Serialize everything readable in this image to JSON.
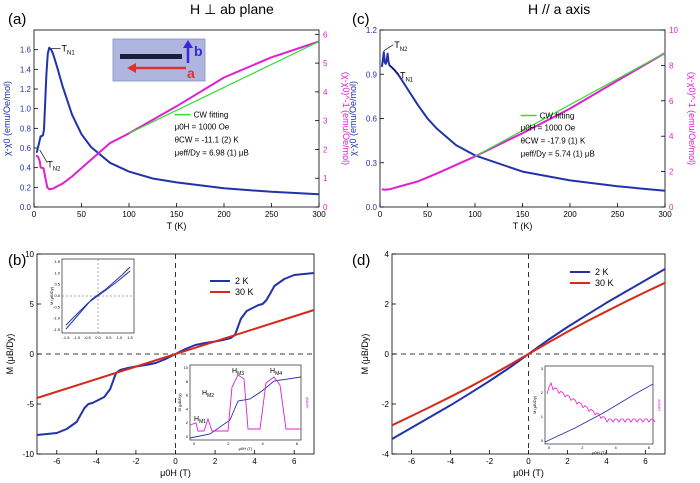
{
  "colors": {
    "blue": "#2233aa",
    "red": "#d42a1a",
    "magenta": "#e020d0",
    "green": "#33dd33",
    "arrow_blue": "#3a28d8",
    "arrow_red": "#e0302a"
  },
  "panels": {
    "a": {
      "label": "(a)",
      "title": "H ⊥ ab plane"
    },
    "b": {
      "label": "(b)"
    },
    "c": {
      "label": "(c)",
      "title": "H // a axis"
    },
    "d": {
      "label": "(d)"
    }
  },
  "crystal_photo": {
    "label_a": "a",
    "label_b": "b"
  },
  "chart_data": [
    {
      "id": "a",
      "type": "line",
      "xlabel": "T (K)",
      "ylabel": "χ-χ0 (emu/Oe/mol)",
      "y2label": "(χ-χ0)^-1 (emu/Oe/mol)",
      "xlim": [
        0,
        300
      ],
      "ylim": [
        0,
        1.8
      ],
      "y2lim": [
        0,
        6.15
      ],
      "xticks": [
        0,
        50,
        100,
        150,
        200,
        250,
        300
      ],
      "yticks": [
        0.0,
        0.2,
        0.4,
        0.6,
        0.8,
        1.0,
        1.2,
        1.4,
        1.6
      ],
      "y2ticks": [
        0,
        1,
        2,
        3,
        4,
        5,
        6
      ],
      "ytick_labels": [
        "0.0",
        "0.2",
        "0.4",
        "0.6",
        "0.8",
        "1.0",
        "1.2",
        "1.4",
        "1.6"
      ],
      "y2tick_labels": [
        "0",
        "1",
        "2",
        "3",
        "4",
        "5",
        "6"
      ],
      "series": [
        {
          "name": "χ-χ0",
          "color_key": "blue",
          "axis": "left",
          "x": [
            2,
            3,
            5,
            6.5,
            7,
            8,
            9.5,
            10.5,
            11.5,
            13,
            14.5,
            16,
            18,
            20,
            25,
            30,
            40,
            50,
            60,
            80,
            100,
            125,
            150,
            200,
            250,
            300
          ],
          "y": [
            0.56,
            0.56,
            0.64,
            0.7,
            0.72,
            0.72,
            0.73,
            0.79,
            1.0,
            1.35,
            1.56,
            1.62,
            1.6,
            1.56,
            1.4,
            1.23,
            0.94,
            0.74,
            0.61,
            0.45,
            0.36,
            0.29,
            0.25,
            0.19,
            0.155,
            0.13
          ]
        },
        {
          "name": "(χ-χ0)^-1",
          "color_key": "magenta",
          "axis": "right",
          "x": [
            2,
            4,
            6,
            7,
            8,
            10,
            12,
            14,
            16,
            20,
            25,
            30,
            40,
            50,
            60,
            80,
            100,
            150,
            200,
            250,
            300
          ],
          "y": [
            1.78,
            1.76,
            1.6,
            1.38,
            1.36,
            1.35,
            1.0,
            0.68,
            0.62,
            0.64,
            0.73,
            0.81,
            1.06,
            1.35,
            1.64,
            2.22,
            2.56,
            3.5,
            4.5,
            5.2,
            5.75
          ]
        },
        {
          "name": "CW fitting",
          "color_key": "green",
          "axis": "right",
          "x": [
            100,
            300
          ],
          "y": [
            2.56,
            5.75
          ]
        }
      ],
      "annotations": {
        "tn1": "T",
        "tn1_sub": "N1",
        "tn2": "T",
        "tn2_sub": "N2",
        "legend_cw": "CW fitting",
        "field": "μ0H = 1000 Oe",
        "theta": "θCW = -11.1 (2) K",
        "mu": "μeff/Dy = 6.98 (1) μB"
      }
    },
    {
      "id": "c",
      "type": "line",
      "xlabel": "T (K)",
      "ylabel": "χ-χ0 (emu/Oe/mol)",
      "y2label": "(χ-χ0)^-1 (emu/Oe/mol)",
      "xlim": [
        0,
        300
      ],
      "ylim": [
        0,
        1.2
      ],
      "y2lim": [
        0,
        10
      ],
      "xticks": [
        0,
        50,
        100,
        150,
        200,
        250,
        300
      ],
      "yticks": [
        0.0,
        0.3,
        0.6,
        0.9,
        1.2
      ],
      "y2ticks": [
        0,
        2,
        4,
        6,
        8,
        10
      ],
      "ytick_labels": [
        "0.0",
        "0.3",
        "0.6",
        "0.9",
        "1.2"
      ],
      "y2tick_labels": [
        "0",
        "2",
        "4",
        "6",
        "8",
        "10"
      ],
      "series": [
        {
          "name": "χ-χ0",
          "color_key": "blue",
          "axis": "left",
          "x": [
            2,
            3,
            4,
            5,
            6,
            7,
            8,
            9,
            10,
            12,
            15,
            20,
            30,
            40,
            50,
            60,
            80,
            100,
            150,
            200,
            250,
            300
          ],
          "y": [
            0.95,
            1.0,
            1.05,
            0.98,
            0.97,
            0.99,
            1.04,
            0.98,
            0.96,
            0.95,
            0.93,
            0.89,
            0.79,
            0.69,
            0.6,
            0.53,
            0.42,
            0.35,
            0.24,
            0.18,
            0.14,
            0.11
          ]
        },
        {
          "name": "(χ-χ0)^-1",
          "color_key": "magenta",
          "axis": "right",
          "x": [
            2,
            5,
            10,
            15,
            20,
            30,
            40,
            50,
            60,
            80,
            100,
            150,
            200,
            250,
            300
          ],
          "y": [
            1.0,
            0.98,
            1.0,
            1.08,
            1.15,
            1.3,
            1.45,
            1.67,
            1.9,
            2.38,
            2.86,
            4.17,
            5.56,
            7.14,
            8.7
          ]
        },
        {
          "name": "CW fitting",
          "color_key": "green",
          "axis": "right",
          "x": [
            100,
            300
          ],
          "y": [
            2.86,
            8.7
          ]
        }
      ],
      "annotations": {
        "tn2": "T",
        "tn2_sub": "N2",
        "tn1": "T",
        "tn1_sub": "N1",
        "legend_cw": "CW fitting",
        "field": "μ0H = 1000 Oe",
        "theta": "θCW = -17.9 (1) K",
        "mu": "μeff/Dy = 5.74 (1) μB"
      }
    },
    {
      "id": "b",
      "type": "line",
      "xlabel": "μ0H (T)",
      "ylabel": "M (μB/Dy)",
      "xlim": [
        -7,
        7
      ],
      "ylim": [
        -10,
        10
      ],
      "xticks": [
        -6,
        -4,
        -2,
        0,
        2,
        4,
        6
      ],
      "yticks": [
        -10,
        -5,
        0,
        5,
        10
      ],
      "ytick_labels": [
        "-10",
        "-5",
        "0",
        "5",
        "10"
      ],
      "legend": [
        "2 K",
        "30 K"
      ],
      "series": [
        {
          "name": "2 K",
          "color_key": "blue",
          "x": [
            -7,
            -6.5,
            -6,
            -5.5,
            -5,
            -4.8,
            -4.6,
            -4.4,
            -4.2,
            -4,
            -3.6,
            -3.3,
            -3.1,
            -3,
            -2.8,
            -2.4,
            -2,
            -1.5,
            -1,
            -0.5,
            0,
            0.5,
            1,
            1.5,
            2,
            2.4,
            2.8,
            3,
            3.1,
            3.3,
            3.6,
            4,
            4.2,
            4.4,
            4.6,
            4.8,
            5,
            5.5,
            6,
            6.5,
            7
          ],
          "y": [
            -8.1,
            -8.0,
            -7.9,
            -7.5,
            -6.8,
            -6.1,
            -5.4,
            -5.0,
            -4.9,
            -4.7,
            -4.3,
            -3.5,
            -2.4,
            -1.9,
            -1.6,
            -1.4,
            -1.25,
            -1.1,
            -0.9,
            -0.5,
            0,
            0.5,
            0.9,
            1.1,
            1.25,
            1.4,
            1.6,
            1.9,
            2.4,
            3.5,
            4.3,
            4.7,
            4.9,
            5.0,
            5.4,
            6.1,
            6.8,
            7.5,
            7.9,
            8.0,
            8.1
          ]
        },
        {
          "name": "30 K",
          "color_key": "red",
          "x": [
            -7,
            7
          ],
          "y": [
            -4.4,
            4.4
          ]
        }
      ],
      "inset_upper": {
        "ylabel": "M (μB/Dy)",
        "xticks": [
          "-1.5",
          "-1.0",
          "-0.5",
          "0.0",
          "0.5",
          "1.0",
          "1.5"
        ],
        "yticks": [
          "1.5",
          "1.0",
          "0.5",
          "0.0",
          "-0.5",
          "-1.0",
          "-1.5"
        ]
      },
      "inset_lower": {
        "xlabel": "μ0H (T)",
        "ylabel": "M (μB/Dy)",
        "y2label": "dM/dH",
        "labels": [
          "HM1",
          "HM2",
          "HM3",
          "HM4"
        ],
        "xticks": [
          "0",
          "2",
          "4",
          "6"
        ],
        "yticks": [
          "0",
          "2",
          "4",
          "6",
          "8",
          "10"
        ]
      }
    },
    {
      "id": "d",
      "type": "line",
      "xlabel": "μ0H (T)",
      "ylabel": "M (μB/Dy)",
      "xlim": [
        -7,
        7
      ],
      "ylim": [
        -4,
        4
      ],
      "xticks": [
        -6,
        -4,
        -2,
        0,
        2,
        4,
        6
      ],
      "yticks": [
        -4,
        -2,
        0,
        2,
        4
      ],
      "ytick_labels": [
        "-4",
        "-2",
        "0",
        "2",
        "4"
      ],
      "legend": [
        "2 K",
        "30 K"
      ],
      "series": [
        {
          "name": "2 K",
          "color_key": "blue",
          "x": [
            -7,
            -6,
            -5,
            -4,
            -3,
            -2,
            -1,
            -0.5,
            0,
            0.5,
            1,
            2,
            3,
            4,
            5,
            6,
            7
          ],
          "y": [
            -3.4,
            -2.95,
            -2.5,
            -2.05,
            -1.57,
            -1.08,
            -0.56,
            -0.28,
            0,
            0.28,
            0.56,
            1.08,
            1.57,
            2.05,
            2.5,
            2.95,
            3.4
          ]
        },
        {
          "name": "30 K",
          "color_key": "red",
          "x": [
            -7,
            -6,
            -5,
            -4,
            -3,
            -2,
            -1,
            0,
            1,
            2,
            3,
            4,
            5,
            6,
            7
          ],
          "y": [
            -2.85,
            -2.48,
            -2.1,
            -1.71,
            -1.31,
            -0.89,
            -0.45,
            0,
            0.45,
            0.89,
            1.31,
            1.71,
            2.1,
            2.48,
            2.85
          ]
        }
      ],
      "inset": {
        "xlabel": "μ0H (T)",
        "ylabel": "M (μB/Dy)",
        "y2label": "dM/dH",
        "xticks": [
          "0",
          "2",
          "4",
          "6"
        ],
        "yticks": [
          "0",
          "1",
          "2",
          "3"
        ]
      }
    }
  ]
}
